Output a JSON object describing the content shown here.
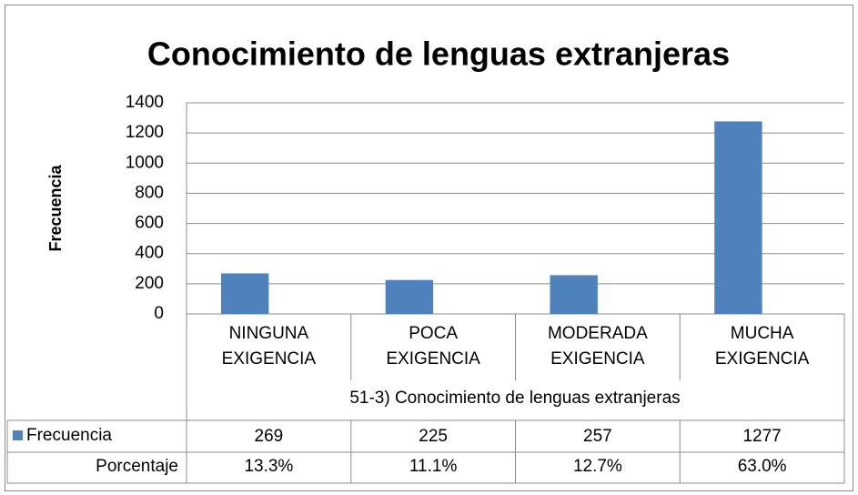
{
  "chart_data": {
    "type": "bar",
    "title": "Conocimiento de lenguas extranjeras",
    "ylabel": "Frecuencia",
    "xlabel": "51-3) Conocimiento de lenguas extranjeras",
    "categories": [
      [
        "NINGUNA",
        "EXIGENCIA"
      ],
      [
        "POCA",
        "EXIGENCIA"
      ],
      [
        "MODERADA",
        "EXIGENCIA"
      ],
      [
        "MUCHA",
        "EXIGENCIA"
      ]
    ],
    "series": [
      {
        "name": "Frecuencia",
        "color": "#4f81bd",
        "values": [
          269,
          225,
          257,
          1277
        ]
      }
    ],
    "percent_row": {
      "name": "Porcentaje",
      "values": [
        13.3,
        11.1,
        12.7,
        63.0
      ],
      "value_labels": [
        "13.3%",
        "11.1%",
        "12.7%",
        "63.0%"
      ]
    },
    "ylim": [
      0,
      1400
    ],
    "yticks": [
      0,
      200,
      400,
      600,
      800,
      1000,
      1200,
      1400
    ],
    "grid": true
  }
}
